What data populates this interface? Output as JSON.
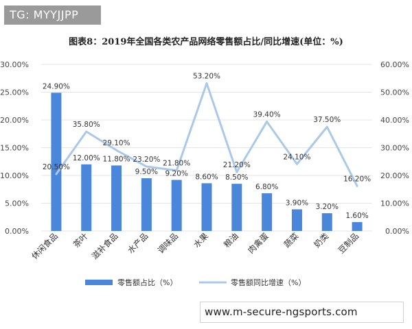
{
  "watermark_tag": "TG: MYYJJPP",
  "url_banner": "www.m-secure-ngsports.com",
  "colors": {
    "bar": "#4a86d9",
    "line": "#a9c8ea",
    "grid": "#e4e4e4"
  },
  "chart_data": {
    "type": "bar",
    "title": "图表8：2019年全国各类农产品网络零售额占比/同比增速(单位：%)",
    "categories": [
      "休闲食品",
      "茶叶",
      "滋补食品",
      "水产品",
      "调味品",
      "水果",
      "粮油",
      "肉禽蛋",
      "蔬菜",
      "奶类",
      "豆制品"
    ],
    "series": [
      {
        "name": "零售额占比（%）",
        "type": "bar",
        "axis": "left",
        "values": [
          24.9,
          12.0,
          11.8,
          9.5,
          9.2,
          8.6,
          8.5,
          6.8,
          3.9,
          3.2,
          1.6
        ],
        "labels": [
          "24.90%",
          "12.00%",
          "11.80%",
          "9.50%",
          "9.20%",
          "8.60%",
          "8.50%",
          "6.80%",
          "3.90%",
          "3.20%",
          "1.60%"
        ]
      },
      {
        "name": "零售额同比增速（%）",
        "type": "line",
        "axis": "right",
        "values": [
          20.5,
          35.8,
          29.1,
          23.2,
          21.8,
          53.2,
          21.2,
          39.4,
          24.1,
          37.5,
          16.2
        ],
        "labels": [
          "20.50%",
          "35.80%",
          "29.10%",
          "23.20%",
          "21.80%",
          "53.20%",
          "21.20%",
          "39.40%",
          "24.10%",
          "37.50%",
          "16.20%"
        ]
      }
    ],
    "y_left": {
      "min": 0,
      "max": 30,
      "ticks": [
        "0.00%",
        "5.00%",
        "10.00%",
        "15.00%",
        "20.00%",
        "25.00%",
        "30.00%"
      ]
    },
    "y_right": {
      "min": 0,
      "max": 60,
      "ticks": [
        "0.00%",
        "10.00%",
        "20.00%",
        "30.00%",
        "40.00%",
        "50.00%",
        "60.00%"
      ]
    },
    "grid": true,
    "legend_position": "bottom"
  }
}
